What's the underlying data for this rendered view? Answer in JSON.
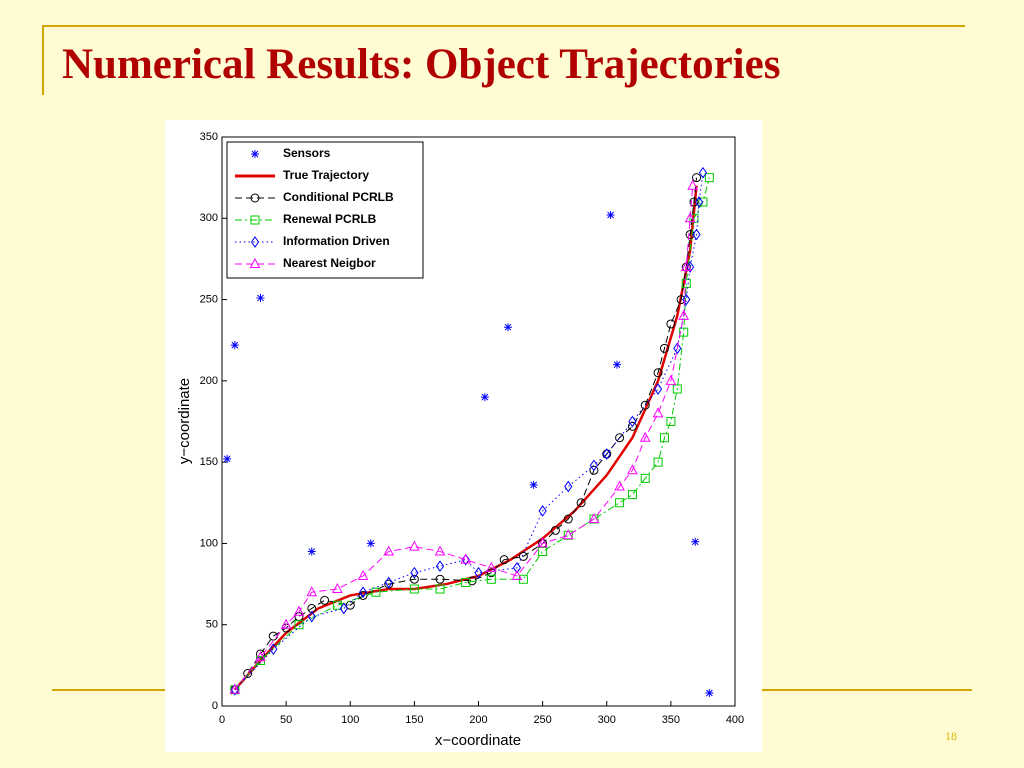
{
  "slide": {
    "title": "Numerical Results: Object Trajectories",
    "page_number": "18"
  },
  "chart_data": {
    "type": "line",
    "x_label": "x−coordinate",
    "y_label": "y−coordinate",
    "xlim": [
      0,
      400
    ],
    "xticks": [
      0,
      50,
      100,
      150,
      200,
      250,
      300,
      350,
      400
    ],
    "ylim": [
      0,
      350
    ],
    "yticks": [
      0,
      50,
      100,
      150,
      200,
      250,
      300,
      350
    ],
    "legend": "upper left",
    "series": [
      {
        "name": "Sensors",
        "color": "#0000ff",
        "marker": "star",
        "line": "none",
        "x": [
          4,
          10,
          30,
          70,
          116,
          205,
          223,
          243,
          303,
          308,
          369,
          380
        ],
        "values": [
          152,
          222,
          251,
          95,
          100,
          190,
          233,
          136,
          302,
          210,
          101,
          8
        ]
      },
      {
        "name": "True Trajectory",
        "color": "#e00000",
        "marker": "none",
        "line": "solid",
        "x": [
          10,
          30,
          50,
          75,
          100,
          130,
          150,
          175,
          200,
          225,
          250,
          275,
          300,
          320,
          340,
          355,
          365,
          370
        ],
        "values": [
          10,
          28,
          45,
          60,
          68,
          72,
          72,
          75,
          80,
          90,
          103,
          120,
          142,
          165,
          200,
          240,
          280,
          320
        ]
      },
      {
        "name": "Conditional PCRLB",
        "color": "#000000",
        "marker": "circle",
        "line": "dashed",
        "x": [
          10,
          20,
          30,
          40,
          50,
          60,
          70,
          80,
          100,
          110,
          130,
          150,
          170,
          195,
          210,
          220,
          235,
          250,
          260,
          270,
          280,
          290,
          300,
          310,
          320,
          330,
          340,
          345,
          350,
          358,
          362,
          365,
          368,
          370
        ],
        "values": [
          10,
          20,
          32,
          43,
          48,
          55,
          60,
          65,
          62,
          68,
          75,
          78,
          78,
          77,
          82,
          90,
          92,
          100,
          108,
          115,
          125,
          145,
          155,
          165,
          172,
          185,
          205,
          220,
          235,
          250,
          270,
          290,
          310,
          325
        ]
      },
      {
        "name": "Renewal PCRLB",
        "color": "#00cc00",
        "marker": "square",
        "line": "dashdot",
        "x": [
          10,
          30,
          60,
          90,
          120,
          150,
          170,
          190,
          210,
          235,
          250,
          270,
          290,
          310,
          320,
          330,
          340,
          345,
          350,
          355,
          360,
          362,
          368,
          375,
          380
        ],
        "values": [
          10,
          28,
          50,
          62,
          70,
          72,
          72,
          76,
          78,
          78,
          95,
          105,
          115,
          125,
          130,
          140,
          150,
          165,
          175,
          195,
          230,
          260,
          300,
          310,
          325
        ]
      },
      {
        "name": "Information Driven",
        "color": "#0000ff",
        "marker": "diamond",
        "line": "dotted",
        "x": [
          10,
          40,
          70,
          95,
          110,
          130,
          150,
          170,
          190,
          200,
          230,
          250,
          270,
          290,
          300,
          320,
          340,
          355,
          362,
          365,
          370,
          372,
          375
        ],
        "values": [
          10,
          35,
          55,
          60,
          70,
          76,
          82,
          86,
          90,
          82,
          85,
          120,
          135,
          148,
          155,
          175,
          195,
          220,
          250,
          270,
          290,
          310,
          328
        ]
      },
      {
        "name": "Nearest Neigbor",
        "color": "#ff00ff",
        "marker": "triangle",
        "line": "dashed",
        "x": [
          10,
          30,
          50,
          60,
          70,
          90,
          110,
          130,
          150,
          170,
          190,
          210,
          230,
          250,
          270,
          290,
          310,
          320,
          330,
          340,
          350,
          360,
          362,
          365,
          367
        ],
        "values": [
          10,
          30,
          50,
          58,
          70,
          72,
          80,
          95,
          98,
          95,
          90,
          85,
          80,
          100,
          105,
          115,
          135,
          145,
          165,
          180,
          200,
          240,
          270,
          300,
          320
        ]
      }
    ]
  }
}
